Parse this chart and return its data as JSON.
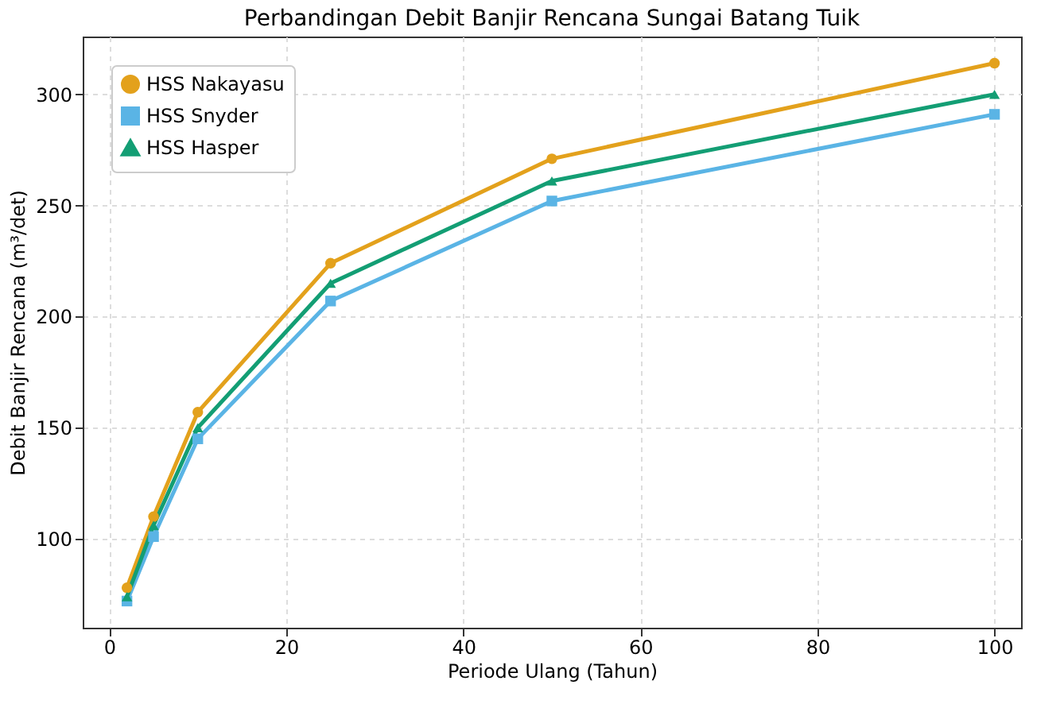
{
  "chart_data": {
    "type": "line",
    "title": "Perbandingan Debit Banjir Rencana Sungai Batang Tuik",
    "xlabel": "Periode Ulang (Tahun)",
    "ylabel": "Debit Banjir Rencana (m³/det)",
    "x": [
      2,
      5,
      10,
      25,
      50,
      100
    ],
    "series": [
      {
        "name": "HSS Nakayasu",
        "color": "#e3a11c",
        "marker": "circle",
        "values": [
          78,
          110,
          157,
          224,
          271,
          314
        ]
      },
      {
        "name": "HSS Snyder",
        "color": "#5ab4e5",
        "marker": "square",
        "values": [
          72,
          101,
          145,
          207,
          252,
          291
        ]
      },
      {
        "name": "HSS Hasper",
        "color": "#139e74",
        "marker": "triangle",
        "values": [
          74,
          106,
          150,
          215,
          261,
          300
        ]
      }
    ],
    "xlim": [
      -3,
      103
    ],
    "xticks": [
      0,
      20,
      40,
      60,
      80,
      100
    ],
    "ylim": [
      60,
      326
    ],
    "yticks": [
      100,
      150,
      200,
      250,
      300
    ],
    "grid": true,
    "legend": "top left",
    "line_style": "solid"
  }
}
